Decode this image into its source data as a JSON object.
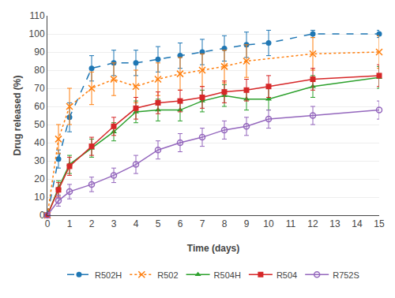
{
  "chart_data": {
    "type": "line",
    "xlabel": "Time (days)",
    "ylabel": "Drug released (%)",
    "x": [
      0,
      0.5,
      1,
      2,
      3,
      4,
      5,
      6,
      7,
      8,
      9,
      10,
      12,
      15
    ],
    "series": [
      {
        "name": "R502H",
        "marker": "circle",
        "line_style": "dashed",
        "values": [
          0,
          31,
          54,
          81,
          84,
          84,
          86,
          88,
          90,
          92,
          94,
          95,
          100,
          100
        ],
        "errors": [
          0,
          5,
          8,
          7,
          7,
          7,
          7,
          7,
          7,
          7,
          7,
          7,
          2,
          2
        ]
      },
      {
        "name": "R502",
        "marker": "x",
        "line_style": "dotted",
        "values": [
          0,
          42,
          60,
          70,
          75,
          71,
          75,
          78,
          80,
          82,
          85,
          null,
          89,
          90
        ],
        "errors": [
          0,
          8,
          10,
          9,
          9,
          9,
          9,
          9,
          9,
          9,
          9,
          null,
          9,
          9
        ]
      },
      {
        "name": "R504H",
        "marker": "triangle",
        "line_style": "solid",
        "values": [
          0,
          15,
          28,
          37,
          46,
          57,
          58,
          58,
          63,
          66,
          64,
          64,
          71,
          76
        ],
        "errors": [
          0,
          4,
          5,
          5,
          5,
          6,
          6,
          6,
          6,
          6,
          6,
          6,
          6,
          6
        ]
      },
      {
        "name": "R504",
        "marker": "square",
        "line_style": "solid",
        "values": [
          0,
          14,
          27,
          38,
          49,
          59,
          62,
          63,
          65,
          68,
          69,
          71,
          75,
          77
        ],
        "errors": [
          0,
          4,
          5,
          5,
          5,
          6,
          6,
          6,
          6,
          6,
          6,
          6,
          6,
          6
        ]
      },
      {
        "name": "R752S",
        "marker": "open_circle",
        "line_style": "solid",
        "values": [
          0,
          8,
          13,
          17,
          22,
          28,
          36,
          40,
          43,
          47,
          49,
          53,
          55,
          58
        ],
        "errors": [
          0,
          3,
          4,
          4,
          4,
          5,
          5,
          5,
          5,
          5,
          5,
          5,
          5,
          5
        ]
      }
    ],
    "xlim": [
      0,
      15
    ],
    "ylim": [
      0,
      110
    ],
    "xticks": [
      0,
      1,
      2,
      3,
      4,
      5,
      6,
      7,
      8,
      9,
      10,
      11,
      12,
      13,
      14,
      15
    ],
    "yticks": [
      0,
      10,
      20,
      30,
      40,
      50,
      60,
      70,
      80,
      90,
      100,
      110
    ],
    "grid": "y",
    "legend": "bottom"
  }
}
